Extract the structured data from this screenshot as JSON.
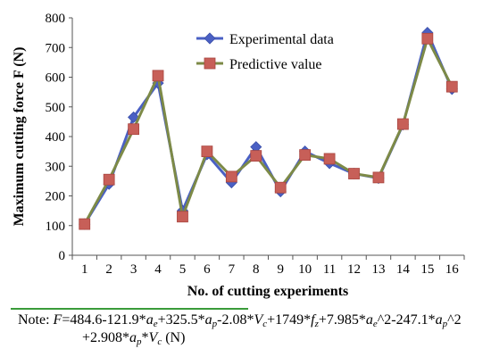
{
  "chart_data": {
    "type": "line",
    "xlabel": "No. of cutting experiments",
    "ylabel": "Maximum cutting force F (N)",
    "ylim": [
      0,
      800
    ],
    "yticks": [
      0,
      100,
      200,
      300,
      400,
      500,
      600,
      700,
      800
    ],
    "categories": [
      "1",
      "2",
      "3",
      "4",
      "5",
      "6",
      "7",
      "8",
      "9",
      "10",
      "11",
      "12",
      "13",
      "14",
      "15",
      "16"
    ],
    "legend_position": "top-center",
    "grid": false,
    "series": [
      {
        "name": "Experimental data",
        "marker": "diamond",
        "color": "#4a60c4",
        "values": [
          105,
          240,
          465,
          580,
          150,
          340,
          245,
          365,
          215,
          350,
          310,
          275,
          260,
          440,
          750,
          560
        ]
      },
      {
        "name": "Predictive value",
        "marker": "square",
        "color": "#c75f58",
        "values": [
          105,
          255,
          425,
          605,
          130,
          350,
          265,
          335,
          228,
          338,
          325,
          275,
          262,
          442,
          730,
          568
        ]
      }
    ]
  },
  "note": {
    "prefix": "Note: ",
    "parts": [
      [
        "i",
        "F"
      ],
      [
        "t",
        "=484.6-121.9*"
      ],
      [
        "i",
        "a"
      ],
      [
        "s",
        "e"
      ],
      [
        "t",
        "+325.5*"
      ],
      [
        "i",
        "a"
      ],
      [
        "s",
        "p"
      ],
      [
        "t",
        "-2.08*"
      ],
      [
        "i",
        "V"
      ],
      [
        "s",
        "c"
      ],
      [
        "t",
        "+1749*"
      ],
      [
        "i",
        "f"
      ],
      [
        "s",
        "z"
      ],
      [
        "t",
        "+7.985*"
      ],
      [
        "i",
        "a"
      ],
      [
        "s",
        "e"
      ],
      [
        "t",
        "^2-247.1*"
      ],
      [
        "i",
        "a"
      ],
      [
        "s",
        "p"
      ],
      [
        "t",
        "^2"
      ],
      [
        "br",
        ""
      ],
      [
        "t",
        "+2.908*"
      ],
      [
        "i",
        "a"
      ],
      [
        "s",
        "p"
      ],
      [
        "t",
        "*"
      ],
      [
        "i",
        "V"
      ],
      [
        "s",
        "c"
      ],
      [
        "t",
        " (N)"
      ]
    ]
  }
}
